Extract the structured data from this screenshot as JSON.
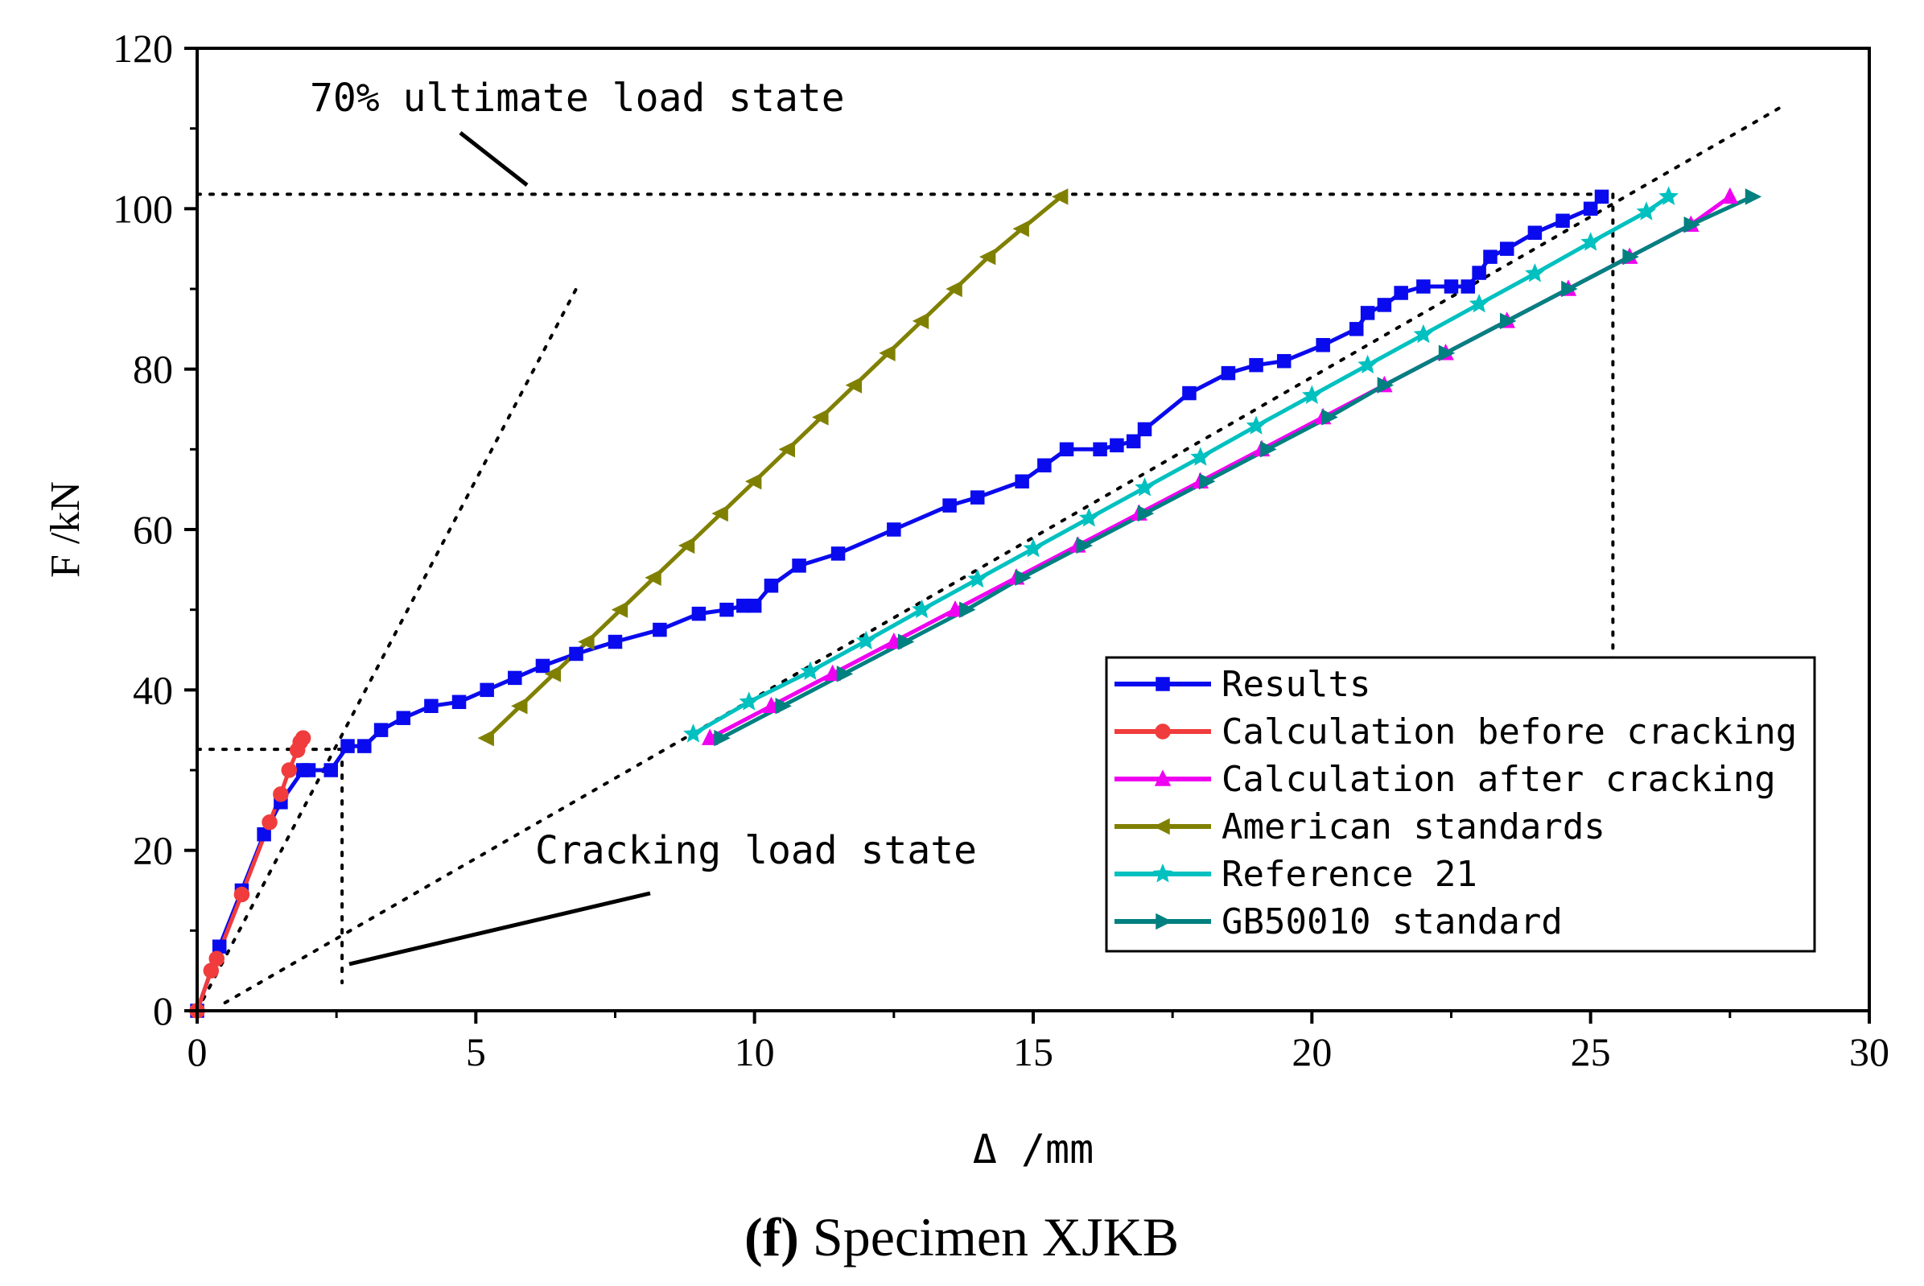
{
  "chart_data": {
    "type": "line",
    "caption_label": "(f)",
    "caption_text": "Specimen XJKB",
    "xlabel": "Δ /mm",
    "ylabel": "F /kN",
    "xlim": [
      0,
      30
    ],
    "ylim": [
      0,
      120
    ],
    "xticks": [
      0,
      5,
      10,
      15,
      20,
      25,
      30
    ],
    "yticks": [
      0,
      20,
      40,
      60,
      80,
      100,
      120
    ],
    "grid": false,
    "legend_position": "bottom-right",
    "annotations": {
      "ultimate": "70% ultimate load state",
      "cracking": "Cracking load state"
    },
    "series": [
      {
        "name": "Results",
        "color": "#0a0aee",
        "marker": "square",
        "x": [
          0,
          0.4,
          0.8,
          1.2,
          1.5,
          1.9,
          2.0,
          2.4,
          2.7,
          3.0,
          3.3,
          3.7,
          4.2,
          4.7,
          5.2,
          5.7,
          6.2,
          6.8,
          7.5,
          8.3,
          9.0,
          9.5,
          9.8,
          10.0,
          10.3,
          10.8,
          11.5,
          12.5,
          13.5,
          14.0,
          14.8,
          15.2,
          15.6,
          16.2,
          16.5,
          16.8,
          17.0,
          17.8,
          18.5,
          19.0,
          19.5,
          20.2,
          20.8,
          21.0,
          21.3,
          21.6,
          22.0,
          22.5,
          22.8,
          23.0,
          23.2,
          23.5,
          24.0,
          24.5,
          25.0,
          25.2
        ],
        "y": [
          0,
          8,
          15,
          22,
          26,
          30,
          30,
          30,
          33,
          33,
          35,
          36.5,
          38,
          38.5,
          40,
          41.5,
          43,
          44.5,
          46,
          47.5,
          49.5,
          50,
          50.5,
          50.5,
          53,
          55.5,
          57,
          60,
          63,
          64,
          66,
          68,
          70,
          70,
          70.5,
          71,
          72.5,
          77,
          79.5,
          80.5,
          81,
          83,
          85,
          87,
          88,
          89.5,
          90.3,
          90.3,
          90.3,
          92,
          94,
          95,
          97,
          98.5,
          100,
          101.5
        ]
      },
      {
        "name": "Calculation before cracking",
        "color": "#f03c3c",
        "marker": "circle",
        "x": [
          0,
          0.25,
          0.35,
          0.8,
          1.3,
          1.5,
          1.65,
          1.8,
          1.85,
          1.9
        ],
        "y": [
          0,
          5,
          6.5,
          14.5,
          23.5,
          27,
          30,
          32.5,
          33.5,
          34
        ]
      },
      {
        "name": "Calculation after cracking",
        "color": "#f000f0",
        "marker": "triangle-up",
        "x": [
          9.2,
          10.3,
          11.4,
          12.5,
          13.6,
          14.7,
          15.8,
          16.9,
          18.0,
          19.1,
          20.2,
          21.3,
          22.4,
          23.5,
          24.6,
          25.7,
          26.8,
          27.5
        ],
        "y": [
          34,
          38,
          42,
          46,
          50,
          54,
          58,
          62,
          66,
          70,
          74,
          78,
          82,
          86,
          90,
          94,
          98,
          101.5
        ]
      },
      {
        "name": "American standards",
        "color": "#808000",
        "marker": "triangle-left",
        "x": [
          5.2,
          5.8,
          6.4,
          7.0,
          7.6,
          8.2,
          8.8,
          9.4,
          10.0,
          10.6,
          11.2,
          11.8,
          12.4,
          13.0,
          13.6,
          14.2,
          14.8,
          15.5
        ],
        "y": [
          34,
          38,
          42,
          46,
          50,
          54,
          58,
          62,
          66,
          70,
          74,
          78,
          82,
          86,
          90,
          94,
          97.5,
          101.5
        ]
      },
      {
        "name": "Reference 21",
        "color": "#00c0c0",
        "marker": "star",
        "x": [
          8.9,
          9.9,
          11.0,
          12.0,
          13.0,
          14.0,
          15.0,
          16.0,
          17.0,
          18.0,
          19.0,
          20.0,
          21.0,
          22.0,
          23.0,
          24.0,
          25.0,
          26.0,
          26.4
        ],
        "y": [
          34.5,
          38.5,
          42.3,
          46.1,
          50.0,
          53.8,
          57.6,
          61.4,
          65.2,
          69.0,
          72.9,
          76.7,
          80.5,
          84.3,
          88.1,
          91.9,
          95.8,
          99.6,
          101.5
        ]
      },
      {
        "name": "GB50010 standard",
        "color": "#008080",
        "marker": "triangle-right",
        "x": [
          9.4,
          10.5,
          11.6,
          12.7,
          13.8,
          14.8,
          15.9,
          17.0,
          18.1,
          19.2,
          20.3,
          21.3,
          22.4,
          23.5,
          24.6,
          25.7,
          26.8,
          27.9
        ],
        "y": [
          34,
          38,
          42,
          46,
          50,
          54,
          58,
          62,
          66,
          70,
          74,
          78,
          82,
          86,
          90,
          94,
          98,
          101.5
        ]
      }
    ],
    "reference_lines": [
      {
        "x": [
          0,
          6.8
        ],
        "y": [
          0,
          90
        ]
      },
      {
        "x": [
          0.5,
          28.5
        ],
        "y": [
          1,
          113
        ]
      },
      {
        "x": [
          0,
          25.4
        ],
        "y": [
          101.8,
          101.8
        ]
      },
      {
        "x": [
          25.4,
          25.4
        ],
        "y": [
          101.8,
          44
        ]
      },
      {
        "x": [
          0,
          2.6
        ],
        "y": [
          32.6,
          32.6
        ]
      },
      {
        "x": [
          2.6,
          2.6
        ],
        "y": [
          32.6,
          3.5
        ]
      }
    ]
  }
}
